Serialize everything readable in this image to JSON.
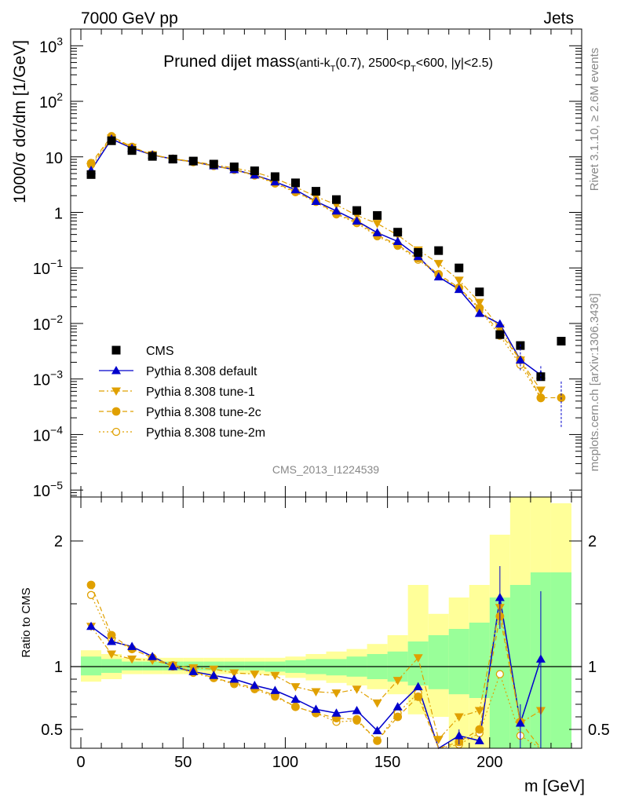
{
  "header": {
    "left": "7000 GeV pp",
    "right": "Jets"
  },
  "side_text": {
    "rivet": "Rivet 3.1.10, ≥ 2.6M events",
    "mcplots": "mcplots.cern.ch [arXiv:1306.3436]"
  },
  "chart_data": {
    "type": "scatter",
    "title": {
      "main": "Pruned dijet mass",
      "sub": "(anti-k",
      "sub_T": "T",
      "sub2": "(0.7), 2500<p",
      "sub_T2": "T",
      "sub3": "<600, |y|<2.5)"
    },
    "analysis_label": "CMS_2013_I1224539",
    "xlabel": "m [GeV]",
    "ylabel": "1000/σ dσ/dm [1/GeV]",
    "ratio_ylabel": "Ratio to CMS",
    "xlim": [
      -5,
      245
    ],
    "ylim": [
      7.5e-06,
      2000
    ],
    "log_y": true,
    "ratio_ylim": [
      0.35,
      2.35
    ],
    "x_ticks": [
      "0",
      "50",
      "100",
      "150",
      "200"
    ],
    "x_tick_values": [
      0,
      50,
      100,
      150,
      200
    ],
    "y_ticks": [
      {
        "v": 1000,
        "base": "10",
        "exp": "3"
      },
      {
        "v": 100,
        "base": "10",
        "exp": "2"
      },
      {
        "v": 10,
        "base": "10",
        "exp": ""
      },
      {
        "v": 1,
        "base": "1",
        "exp": ""
      },
      {
        "v": 0.1,
        "base": "10",
        "exp": "−1"
      },
      {
        "v": 0.01,
        "base": "10",
        "exp": "−2"
      },
      {
        "v": 0.001,
        "base": "10",
        "exp": "−3"
      },
      {
        "v": 0.0001,
        "base": "10",
        "exp": "−4"
      },
      {
        "v": 1e-05,
        "base": "10",
        "exp": "−5"
      }
    ],
    "ratio_ticks": [
      {
        "v": 2,
        "label": "2"
      },
      {
        "v": 1,
        "label": "1"
      },
      {
        "v": 0.5,
        "label": "0.5"
      }
    ],
    "bin_edges": [
      0,
      10,
      20,
      30,
      40,
      50,
      60,
      70,
      80,
      90,
      100,
      110,
      120,
      130,
      140,
      150,
      160,
      170,
      180,
      190,
      200,
      210,
      220,
      230,
      240
    ],
    "x": [
      5,
      15,
      25,
      35,
      45,
      55,
      65,
      75,
      85,
      95,
      105,
      115,
      125,
      135,
      145,
      155,
      165,
      175,
      185,
      195,
      205,
      215,
      225,
      235
    ],
    "data": {
      "name": "CMS",
      "color": "#000000",
      "values": [
        4.8,
        19.5,
        13.0,
        10.2,
        9.1,
        8.4,
        7.4,
        6.6,
        5.6,
        4.4,
        3.4,
        2.4,
        1.7,
        1.08,
        0.88,
        0.44,
        0.19,
        0.205,
        0.1,
        0.037,
        0.0063,
        0.004,
        0.0011,
        0.0048
      ]
    },
    "ratio_bands": {
      "green": [
        [
          0.93,
          1.08
        ],
        [
          0.95,
          1.06
        ],
        [
          0.97,
          1.04
        ],
        [
          0.97,
          1.04
        ],
        [
          0.97,
          1.04
        ],
        [
          0.97,
          1.04
        ],
        [
          0.97,
          1.04
        ],
        [
          0.97,
          1.04
        ],
        [
          0.97,
          1.04
        ],
        [
          0.96,
          1.04
        ],
        [
          0.95,
          1.05
        ],
        [
          0.94,
          1.06
        ],
        [
          0.93,
          1.06
        ],
        [
          0.92,
          1.08
        ],
        [
          0.9,
          1.1
        ],
        [
          0.88,
          1.12
        ],
        [
          0.85,
          1.2
        ],
        [
          0.82,
          1.25
        ],
        [
          0.78,
          1.3
        ],
        [
          0.75,
          1.35
        ],
        [
          0.35,
          1.55
        ],
        [
          0.35,
          1.65
        ],
        [
          0.35,
          1.75
        ],
        [
          0.35,
          1.75
        ]
      ],
      "yellow": [
        [
          0.88,
          1.13
        ],
        [
          0.9,
          1.1
        ],
        [
          0.94,
          1.07
        ],
        [
          0.94,
          1.07
        ],
        [
          0.94,
          1.07
        ],
        [
          0.94,
          1.07
        ],
        [
          0.94,
          1.07
        ],
        [
          0.94,
          1.07
        ],
        [
          0.94,
          1.07
        ],
        [
          0.93,
          1.07
        ],
        [
          0.91,
          1.08
        ],
        [
          0.89,
          1.1
        ],
        [
          0.87,
          1.12
        ],
        [
          0.85,
          1.14
        ],
        [
          0.82,
          1.18
        ],
        [
          0.78,
          1.25
        ],
        [
          0.62,
          1.65
        ],
        [
          0.6,
          1.42
        ],
        [
          0.35,
          1.55
        ],
        [
          0.35,
          1.65
        ],
        [
          0.35,
          2.05
        ],
        [
          0.35,
          2.35
        ],
        [
          0.35,
          2.35
        ],
        [
          0.35,
          2.3
        ]
      ]
    },
    "series": [
      {
        "name": "Pythia 8.308 default",
        "color": "#0000cc",
        "marker": "triangle-up",
        "line": "solid",
        "values": [
          5.7,
          21.0,
          14.3,
          10.8,
          9.15,
          8.15,
          6.9,
          5.9,
          4.72,
          3.55,
          2.55,
          1.58,
          1.06,
          0.7,
          0.43,
          0.3,
          0.16,
          0.069,
          0.041,
          0.0152,
          0.0098,
          0.0022,
          0.00118,
          null
        ],
        "ratio": [
          1.32,
          1.2,
          1.16,
          1.08,
          1.0,
          0.96,
          0.93,
          0.9,
          0.85,
          0.81,
          0.74,
          0.66,
          0.63,
          0.65,
          0.49,
          0.68,
          0.84,
          0.33,
          0.45,
          0.41,
          1.55,
          0.55,
          1.06,
          null
        ]
      },
      {
        "name": "Pythia 8.308 tune-1",
        "color": "#e0a000",
        "marker": "triangle-down",
        "line": "dashdot",
        "values": [
          6.6,
          21.8,
          14.8,
          10.9,
          9.2,
          8.3,
          7.2,
          6.3,
          5.3,
          4.1,
          2.86,
          1.93,
          1.37,
          0.88,
          0.63,
          0.39,
          0.21,
          0.12,
          0.06,
          0.024,
          0.0082,
          0.0022,
          0.00063,
          null
        ],
        "ratio": [
          1.32,
          1.1,
          1.06,
          1.05,
          1.01,
          0.99,
          0.98,
          0.95,
          0.94,
          0.93,
          0.84,
          0.8,
          0.79,
          0.82,
          0.71,
          0.89,
          1.07,
          0.42,
          0.6,
          0.65,
          1.47,
          0.55,
          0.65,
          null
        ]
      },
      {
        "name": "Pythia 8.308 tune-2c",
        "color": "#e0a000",
        "marker": "circle",
        "line": "dashed",
        "values": [
          7.7,
          23.5,
          15.1,
          10.9,
          9.2,
          8.1,
          6.9,
          5.9,
          4.7,
          3.4,
          2.35,
          1.58,
          0.95,
          0.68,
          0.39,
          0.26,
          0.15,
          0.077,
          0.044,
          0.019,
          0.0068,
          0.0022,
          0.00046,
          0.00046
        ],
        "ratio": [
          1.65,
          1.25,
          1.14,
          1.07,
          1.01,
          0.96,
          0.91,
          0.87,
          0.83,
          0.77,
          0.68,
          0.63,
          0.59,
          0.58,
          0.41,
          0.6,
          0.76,
          0.3,
          0.4,
          0.5,
          1.4,
          0.56,
          0.31,
          null
        ]
      },
      {
        "name": "Pythia 8.308 tune-2m",
        "color": "#e0a000",
        "marker": "circle-open",
        "line": "dotted",
        "values": [
          7.2,
          23.0,
          14.9,
          10.8,
          9.1,
          8.0,
          6.8,
          5.8,
          4.6,
          3.3,
          2.3,
          1.54,
          0.92,
          0.64,
          0.37,
          0.25,
          0.14,
          0.074,
          0.043,
          0.018,
          0.006,
          0.0018,
          0.00045,
          null
        ],
        "ratio": [
          1.57,
          1.22,
          1.14,
          1.07,
          1.0,
          0.95,
          0.91,
          0.86,
          0.82,
          0.76,
          0.68,
          0.63,
          0.56,
          0.57,
          0.41,
          0.63,
          0.79,
          0.3,
          0.38,
          0.47,
          0.94,
          0.45,
          0.32,
          null
        ]
      }
    ],
    "legend_placement": "bottom-left"
  }
}
